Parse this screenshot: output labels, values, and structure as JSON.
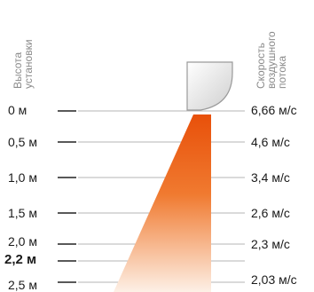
{
  "axis_titles": {
    "height": "Высота\nустановки",
    "velocity": "Скорость\nвоздушного\nпотока"
  },
  "heights": [
    {
      "label": "0 м",
      "bold": false
    },
    {
      "label": "0,5 м",
      "bold": false
    },
    {
      "label": "1,0 м",
      "bold": false
    },
    {
      "label": "1,5 м",
      "bold": false
    },
    {
      "label": "2,0 м",
      "bold": false
    },
    {
      "label": "2,2 м",
      "bold": true
    },
    {
      "label": "2,5 м",
      "bold": false
    }
  ],
  "velocities": [
    {
      "label": "6,66 м/с"
    },
    {
      "label": "4,6 м/с"
    },
    {
      "label": "3,4 м/с"
    },
    {
      "label": "2,6 м/с"
    },
    {
      "label": "2,3 м/с"
    },
    {
      "label": "2,03 м/с"
    }
  ],
  "colors": {
    "flow_top": "#e8500a",
    "flow_bottom": "#fdf0e6",
    "grid_line": "#b5b5b5",
    "tick": "#222222",
    "device_stroke": "#9a9a9a"
  },
  "icons": {
    "device": "air-curtain-nozzle-icon"
  }
}
